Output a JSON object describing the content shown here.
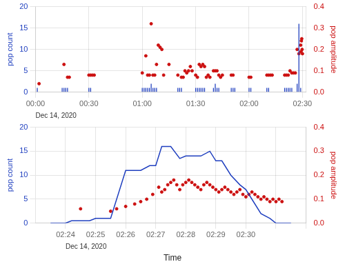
{
  "chart_data": [
    {
      "type": "bar",
      "xlim": [
        0,
        152
      ],
      "xticks": [
        {
          "value": 0,
          "label": "00:00"
        },
        {
          "value": 30,
          "label": "00:30"
        },
        {
          "value": 60,
          "label": "01:00"
        },
        {
          "value": 90,
          "label": "01:30"
        },
        {
          "value": 120,
          "label": "02:00"
        },
        {
          "value": 150,
          "label": "02:30"
        }
      ],
      "ylim": [
        0,
        20
      ],
      "yticks": [
        0,
        5,
        10,
        15,
        20
      ],
      "y2lim": [
        0,
        0.4
      ],
      "y2ticks": [
        {
          "value": 0,
          "label": "0.0"
        },
        0.1,
        0.2,
        0.3,
        0.4
      ],
      "ylabel": "pop count",
      "y2label": "pop amplitude",
      "grid": true,
      "annotations": [
        {
          "text": "Dec 14, 2020",
          "x": 0
        }
      ],
      "series": [
        {
          "type": "bar",
          "color": "#1f3fbf",
          "x": [
            1,
            15,
            16,
            17,
            18,
            30,
            31,
            60,
            61,
            62,
            63,
            64,
            65,
            66,
            67,
            68,
            80,
            81,
            82,
            90,
            91,
            92,
            93,
            94,
            95,
            100,
            101,
            102,
            103,
            110,
            111,
            112,
            120,
            121,
            130,
            131,
            140,
            141,
            142,
            143,
            144,
            147,
            148,
            149
          ],
          "values": [
            1,
            1,
            1,
            1,
            1,
            1,
            1,
            1,
            1,
            1,
            1,
            1,
            2,
            1,
            1,
            1,
            1,
            1,
            1,
            1,
            1,
            1,
            1,
            1,
            1,
            1,
            2,
            1,
            1,
            1,
            1,
            1,
            1,
            1,
            1,
            1,
            1,
            1,
            1,
            1,
            1,
            2,
            16,
            1
          ]
        },
        {
          "type": "scatter",
          "color": "#cc1111",
          "axis": "y2",
          "x": [
            2,
            16,
            18,
            19,
            30,
            31,
            32,
            33,
            60,
            62,
            63,
            64,
            65,
            66,
            67,
            68,
            69,
            70,
            71,
            72,
            75,
            80,
            82,
            83,
            84,
            85,
            86,
            87,
            88,
            90,
            91,
            92,
            93,
            94,
            95,
            96,
            97,
            98,
            100,
            101,
            102,
            103,
            104,
            105,
            110,
            111,
            120,
            121,
            130,
            131,
            132,
            133,
            140,
            141,
            142,
            143,
            144,
            145,
            146,
            147,
            148,
            149,
            149.2,
            149.4,
            149.6,
            149.8,
            150
          ],
          "values": [
            0.04,
            0.13,
            0.07,
            0.07,
            0.08,
            0.08,
            0.08,
            0.08,
            0.09,
            0.17,
            0.08,
            0.08,
            0.32,
            0.08,
            0.08,
            0.13,
            0.22,
            0.21,
            0.2,
            0.08,
            0.13,
            0.08,
            0.07,
            0.07,
            0.1,
            0.09,
            0.1,
            0.12,
            0.1,
            0.08,
            0.07,
            0.13,
            0.12,
            0.13,
            0.12,
            0.07,
            0.08,
            0.07,
            0.1,
            0.1,
            0.1,
            0.08,
            0.07,
            0.08,
            0.08,
            0.08,
            0.07,
            0.07,
            0.08,
            0.08,
            0.08,
            0.08,
            0.08,
            0.08,
            0.08,
            0.1,
            0.09,
            0.09,
            0.09,
            0.2,
            0.18,
            0.22,
            0.19,
            0.24,
            0.25,
            0.2,
            0.18
          ]
        }
      ]
    },
    {
      "type": "line",
      "xlabel": "Time",
      "xlim": [
        143,
        152
      ],
      "xticks": [
        {
          "value": 144,
          "label": "02:24"
        },
        {
          "value": 145,
          "label": "02:25"
        },
        {
          "value": 146,
          "label": "02:26"
        },
        {
          "value": 147,
          "label": "02:27"
        },
        {
          "value": 148,
          "label": "02:28"
        },
        {
          "value": 149,
          "label": "02:29"
        },
        {
          "value": 150,
          "label": "02:30"
        },
        {
          "value": 151,
          "label": null
        },
        {
          "value": 152,
          "label": null
        }
      ],
      "ylim": [
        0,
        20
      ],
      "yticks": [
        0,
        5,
        10,
        15,
        20
      ],
      "y2lim": [
        0,
        0.4
      ],
      "y2ticks": [
        {
          "value": 0,
          "label": "0.0"
        },
        0.1,
        0.2,
        0.3,
        0.4
      ],
      "ylabel": "pop count",
      "y2label": "pop amplitude",
      "grid": true,
      "annotations": [
        {
          "text": "Dec 14, 2020",
          "x": 144
        }
      ],
      "series": [
        {
          "type": "line",
          "color": "#1f3fbf",
          "x": [
            143.5,
            144.0,
            144.2,
            144.5,
            144.8,
            145.0,
            145.5,
            146.0,
            146.2,
            146.5,
            146.8,
            147.0,
            147.2,
            147.5,
            147.8,
            148.0,
            148.2,
            148.5,
            148.8,
            149.0,
            149.2,
            149.5,
            149.8,
            150.0,
            150.2,
            150.5,
            150.8,
            151.0,
            151.5
          ],
          "values": [
            0,
            0,
            0.5,
            0.5,
            0.5,
            1.0,
            1.0,
            11.0,
            11.0,
            11.0,
            12.0,
            12.0,
            16.0,
            16.0,
            13.5,
            14.0,
            14.0,
            14.0,
            15.0,
            13.0,
            13.0,
            10.0,
            8.0,
            7.0,
            5.0,
            2.0,
            1.0,
            0.0,
            0.0
          ]
        },
        {
          "type": "scatter",
          "color": "#cc1111",
          "axis": "y2",
          "x": [
            144.5,
            145.5,
            145.7,
            146.0,
            146.3,
            146.5,
            146.7,
            146.9,
            147.1,
            147.2,
            147.3,
            147.4,
            147.5,
            147.6,
            147.7,
            147.8,
            147.9,
            148.0,
            148.1,
            148.2,
            148.3,
            148.4,
            148.5,
            148.6,
            148.7,
            148.8,
            148.9,
            149.0,
            149.1,
            149.2,
            149.3,
            149.4,
            149.5,
            149.6,
            149.7,
            149.8,
            149.9,
            150.0,
            150.1,
            150.2,
            150.3,
            150.4,
            150.5,
            150.6,
            150.7,
            150.8,
            150.9,
            151.0,
            151.1,
            151.2
          ],
          "values": [
            0.06,
            0.05,
            0.06,
            0.07,
            0.08,
            0.09,
            0.1,
            0.12,
            0.15,
            0.13,
            0.14,
            0.16,
            0.17,
            0.18,
            0.16,
            0.14,
            0.16,
            0.17,
            0.18,
            0.17,
            0.16,
            0.15,
            0.14,
            0.16,
            0.17,
            0.16,
            0.15,
            0.14,
            0.13,
            0.14,
            0.15,
            0.14,
            0.13,
            0.12,
            0.13,
            0.14,
            0.12,
            0.11,
            0.12,
            0.13,
            0.12,
            0.11,
            0.1,
            0.11,
            0.1,
            0.09,
            0.1,
            0.09,
            0.1,
            0.09
          ]
        }
      ]
    }
  ]
}
